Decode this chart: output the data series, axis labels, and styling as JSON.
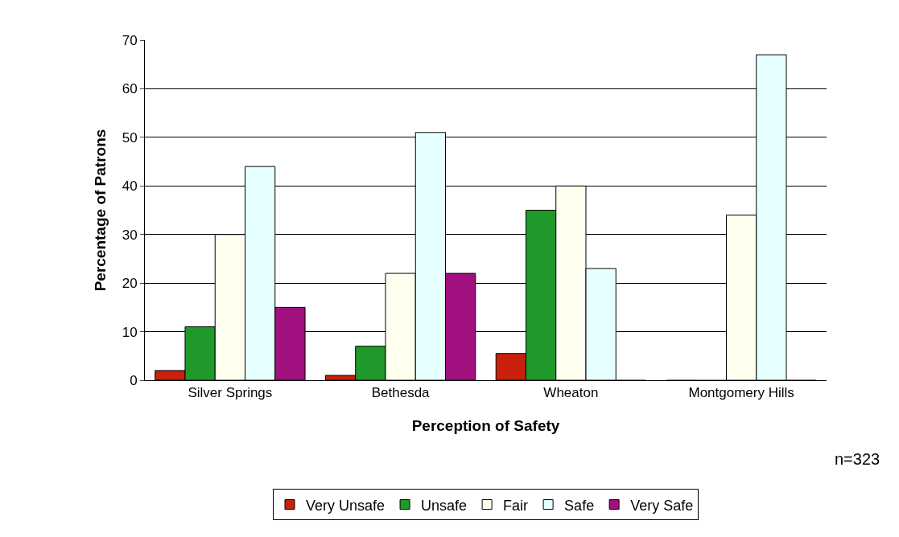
{
  "chart_data": {
    "type": "bar",
    "xlabel": "Perception of Safety",
    "ylabel": "Percentage of Patrons",
    "categories": [
      "Silver Springs",
      "Bethesda",
      "Wheaton",
      "Montgomery Hills"
    ],
    "series": [
      {
        "name": "Very Unsafe",
        "color": "#c8200c",
        "values": [
          2,
          1,
          5.5,
          0
        ]
      },
      {
        "name": "Unsafe",
        "color": "#1f9a2a",
        "values": [
          11,
          7,
          35,
          0
        ]
      },
      {
        "name": "Fair",
        "color": "#fffff0",
        "values": [
          30,
          22,
          40,
          34
        ]
      },
      {
        "name": "Safe",
        "color": "#e6ffff",
        "values": [
          44,
          51,
          23,
          67
        ]
      },
      {
        "name": "Very Safe",
        "color": "#a0107e",
        "values": [
          15,
          22,
          0,
          0
        ]
      }
    ],
    "ylim": [
      0,
      70
    ],
    "yticks": [
      0,
      10,
      20,
      30,
      40,
      50,
      60,
      70
    ],
    "grid": "y",
    "legend": "bottom",
    "annotations": [
      "n=323"
    ]
  }
}
